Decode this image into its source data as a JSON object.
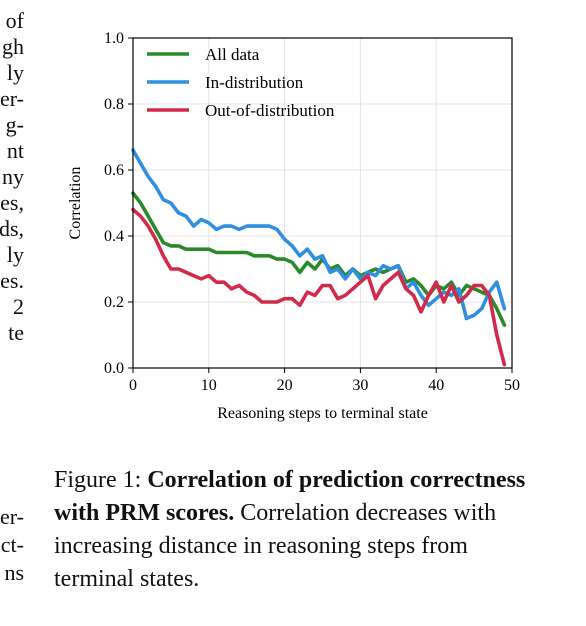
{
  "body_text_fragments": [
    "of",
    "gh",
    "ly",
    "er-",
    "g-",
    "nt",
    "ny",
    "es,",
    "ds,",
    "ly",
    "es.",
    "2",
    "te",
    "er-",
    "ct-",
    "ns"
  ],
  "caption": {
    "label": "Figure 1:",
    "bold": "Correlation of prediction correctness with PRM scores.",
    "rest": "Correlation decreases with increasing distance in reasoning steps from terminal states."
  },
  "chart_data": {
    "type": "line",
    "xlabel": "Reasoning steps to terminal state",
    "ylabel": "Correlation",
    "xlim": [
      0,
      50
    ],
    "ylim": [
      0,
      1.0
    ],
    "xticks": [
      0,
      10,
      20,
      30,
      40,
      50
    ],
    "yticks": [
      0.0,
      0.2,
      0.4,
      0.6,
      0.8,
      1.0
    ],
    "ytick_labels": [
      "0.0",
      "0.2",
      "0.4",
      "0.6",
      "0.8",
      "1.0"
    ],
    "grid": true,
    "legend": "upper-left",
    "x": [
      0,
      1,
      2,
      3,
      4,
      5,
      6,
      7,
      8,
      9,
      10,
      11,
      12,
      13,
      14,
      15,
      16,
      17,
      18,
      19,
      20,
      21,
      22,
      23,
      24,
      25,
      26,
      27,
      28,
      29,
      30,
      31,
      32,
      33,
      34,
      35,
      36,
      37,
      38,
      39,
      40,
      41,
      42,
      43,
      44,
      45,
      46,
      47,
      48,
      49
    ],
    "series": [
      {
        "name": "All data",
        "color": "#2a8a2a",
        "values": [
          0.53,
          0.5,
          0.46,
          0.42,
          0.38,
          0.37,
          0.37,
          0.36,
          0.36,
          0.36,
          0.36,
          0.35,
          0.35,
          0.35,
          0.35,
          0.35,
          0.34,
          0.34,
          0.34,
          0.33,
          0.33,
          0.32,
          0.29,
          0.32,
          0.3,
          0.33,
          0.3,
          0.31,
          0.28,
          0.3,
          0.28,
          0.29,
          0.3,
          0.29,
          0.3,
          0.31,
          0.26,
          0.27,
          0.25,
          0.22,
          0.25,
          0.24,
          0.26,
          0.22,
          0.25,
          0.24,
          0.23,
          0.22,
          0.18,
          0.13
        ]
      },
      {
        "name": "In-distribution",
        "color": "#2f8fe0",
        "values": [
          0.66,
          0.62,
          0.58,
          0.55,
          0.51,
          0.5,
          0.47,
          0.46,
          0.43,
          0.45,
          0.44,
          0.42,
          0.43,
          0.43,
          0.42,
          0.43,
          0.43,
          0.43,
          0.43,
          0.42,
          0.39,
          0.37,
          0.34,
          0.36,
          0.33,
          0.34,
          0.29,
          0.3,
          0.27,
          0.3,
          0.27,
          0.29,
          0.28,
          0.31,
          0.3,
          0.31,
          0.24,
          0.26,
          0.22,
          0.19,
          0.21,
          0.23,
          0.22,
          0.24,
          0.15,
          0.16,
          0.18,
          0.23,
          0.26,
          0.18
        ]
      },
      {
        "name": "Out-of-distribution",
        "color": "#d12a4a",
        "values": [
          0.48,
          0.46,
          0.43,
          0.39,
          0.34,
          0.3,
          0.3,
          0.29,
          0.28,
          0.27,
          0.28,
          0.26,
          0.26,
          0.24,
          0.25,
          0.23,
          0.22,
          0.2,
          0.2,
          0.2,
          0.21,
          0.21,
          0.19,
          0.23,
          0.22,
          0.25,
          0.25,
          0.21,
          0.22,
          0.24,
          0.26,
          0.28,
          0.21,
          0.25,
          0.27,
          0.29,
          0.24,
          0.22,
          0.17,
          0.22,
          0.26,
          0.2,
          0.25,
          0.2,
          0.22,
          0.25,
          0.25,
          0.22,
          0.1,
          0.01
        ]
      }
    ]
  }
}
